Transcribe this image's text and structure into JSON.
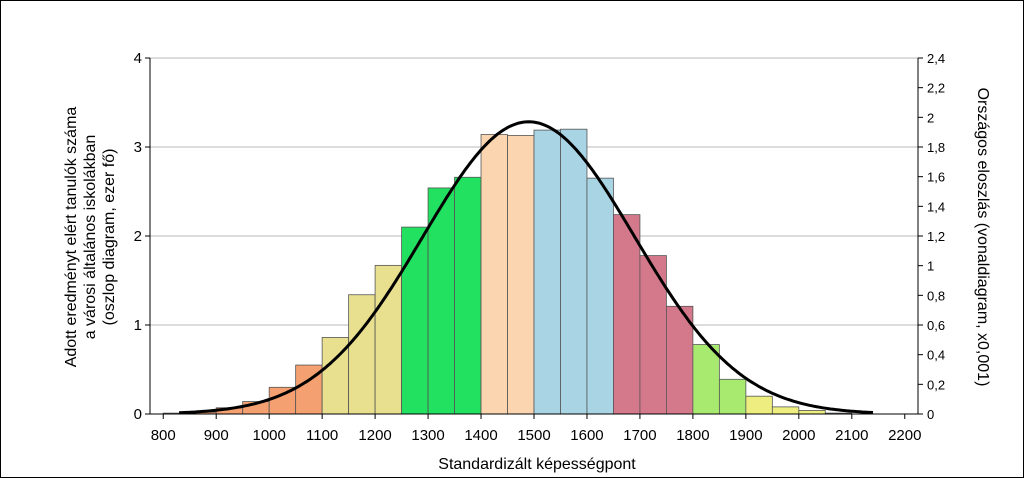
{
  "chart_data": {
    "type": "bar",
    "xlabel": "Standardizált képességpont",
    "ylabel_left": [
      "Adott eredményt elért tanulók száma",
      "a városi általános iskolákban",
      "(oszlop diagram, ezer fő)"
    ],
    "ylabel_right": "Országos eloszlás (vonaldiagram, x0,001)",
    "x_ticks": [
      "800",
      "900",
      "1000",
      "1100",
      "1200",
      "1300",
      "1400",
      "1500",
      "1600",
      "1700",
      "1800",
      "1900",
      "2000",
      "2100",
      "2200"
    ],
    "y_left_ticks": [
      "0",
      "1",
      "2",
      "3",
      "4"
    ],
    "y_left_lim": [
      0,
      4
    ],
    "y_right_ticks": [
      "0",
      "0,2",
      "0,4",
      "0,6",
      "0,8",
      "1",
      "1,2",
      "1,4",
      "1,6",
      "1,8",
      "2",
      "2,2",
      "2,4"
    ],
    "y_right_lim": [
      0,
      2.4
    ],
    "x_lim": [
      775,
      2225
    ],
    "grid": "horizontal",
    "bins": [
      {
        "x": 825,
        "value": 0.01,
        "color": "#f4a070"
      },
      {
        "x": 875,
        "value": 0.02,
        "color": "#f4a070"
      },
      {
        "x": 925,
        "value": 0.07,
        "color": "#f4a070"
      },
      {
        "x": 975,
        "value": 0.14,
        "color": "#f4a070"
      },
      {
        "x": 1025,
        "value": 0.3,
        "color": "#f4a070"
      },
      {
        "x": 1075,
        "value": 0.55,
        "color": "#f4a070"
      },
      {
        "x": 1125,
        "value": 0.86,
        "color": "#e8e08e"
      },
      {
        "x": 1175,
        "value": 1.34,
        "color": "#e8e08e"
      },
      {
        "x": 1225,
        "value": 1.67,
        "color": "#e8e08e"
      },
      {
        "x": 1275,
        "value": 2.1,
        "color": "#22e060"
      },
      {
        "x": 1325,
        "value": 2.54,
        "color": "#22e060"
      },
      {
        "x": 1375,
        "value": 2.66,
        "color": "#22e060"
      },
      {
        "x": 1425,
        "value": 3.14,
        "color": "#fad5b0"
      },
      {
        "x": 1475,
        "value": 3.13,
        "color": "#fad5b0"
      },
      {
        "x": 1525,
        "value": 3.19,
        "color": "#a8d4e4"
      },
      {
        "x": 1575,
        "value": 3.2,
        "color": "#a8d4e4"
      },
      {
        "x": 1625,
        "value": 2.65,
        "color": "#a8d4e4"
      },
      {
        "x": 1675,
        "value": 2.24,
        "color": "#d4788c"
      },
      {
        "x": 1725,
        "value": 1.78,
        "color": "#d4788c"
      },
      {
        "x": 1775,
        "value": 1.21,
        "color": "#d4788c"
      },
      {
        "x": 1825,
        "value": 0.78,
        "color": "#a8ea70"
      },
      {
        "x": 1875,
        "value": 0.39,
        "color": "#a8ea70"
      },
      {
        "x": 1925,
        "value": 0.2,
        "color": "#eeee80"
      },
      {
        "x": 1975,
        "value": 0.08,
        "color": "#eeee80"
      },
      {
        "x": 2025,
        "value": 0.04,
        "color": "#eeee80"
      },
      {
        "x": 2075,
        "value": 0.01,
        "color": "#eeee80"
      }
    ],
    "bin_width": 50,
    "line": {
      "description_type": "normal-distribution",
      "mean": 1490,
      "std": 200,
      "peak": 1.97,
      "color": "#000000"
    }
  }
}
